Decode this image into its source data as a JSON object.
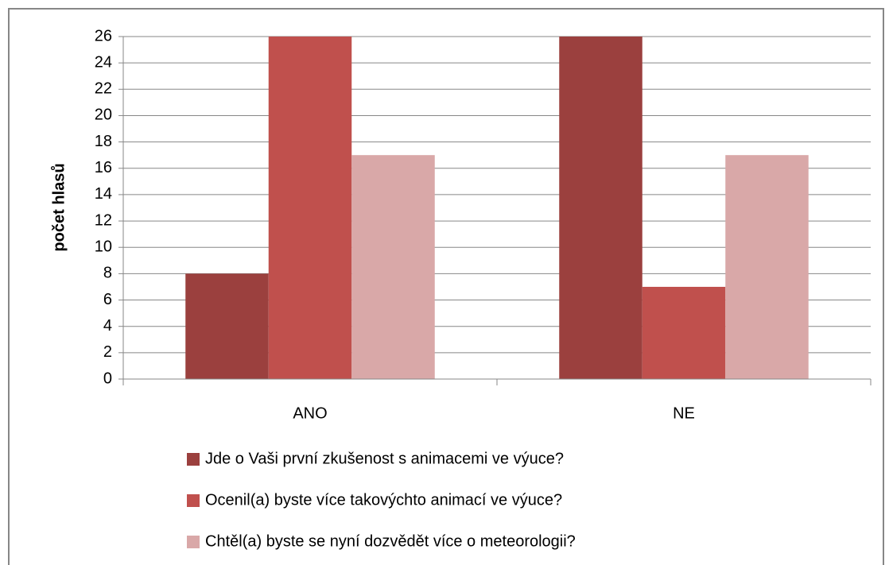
{
  "chart_data": {
    "type": "bar",
    "ylabel": "počet hlasů",
    "categories": [
      "ANO",
      "NE"
    ],
    "series": [
      {
        "name": "Jde o Vaši první zkušenost s animacemi ve výuce?",
        "color": "#9b403e",
        "values": [
          8,
          26
        ]
      },
      {
        "name": "Ocenil(a) byste více takovýchto animací ve výuce?",
        "color": "#c0504d",
        "values": [
          26,
          7
        ]
      },
      {
        "name": "Chtěl(a) byste se nyní dozvědět více o meteorologii?",
        "color": "#d9a8a8",
        "values": [
          17,
          17
        ]
      }
    ],
    "ylim": [
      0,
      26
    ],
    "yticks": [
      0,
      2,
      4,
      6,
      8,
      10,
      12,
      14,
      16,
      18,
      20,
      22,
      24,
      26
    ],
    "grid": true,
    "legend": "bottom"
  }
}
